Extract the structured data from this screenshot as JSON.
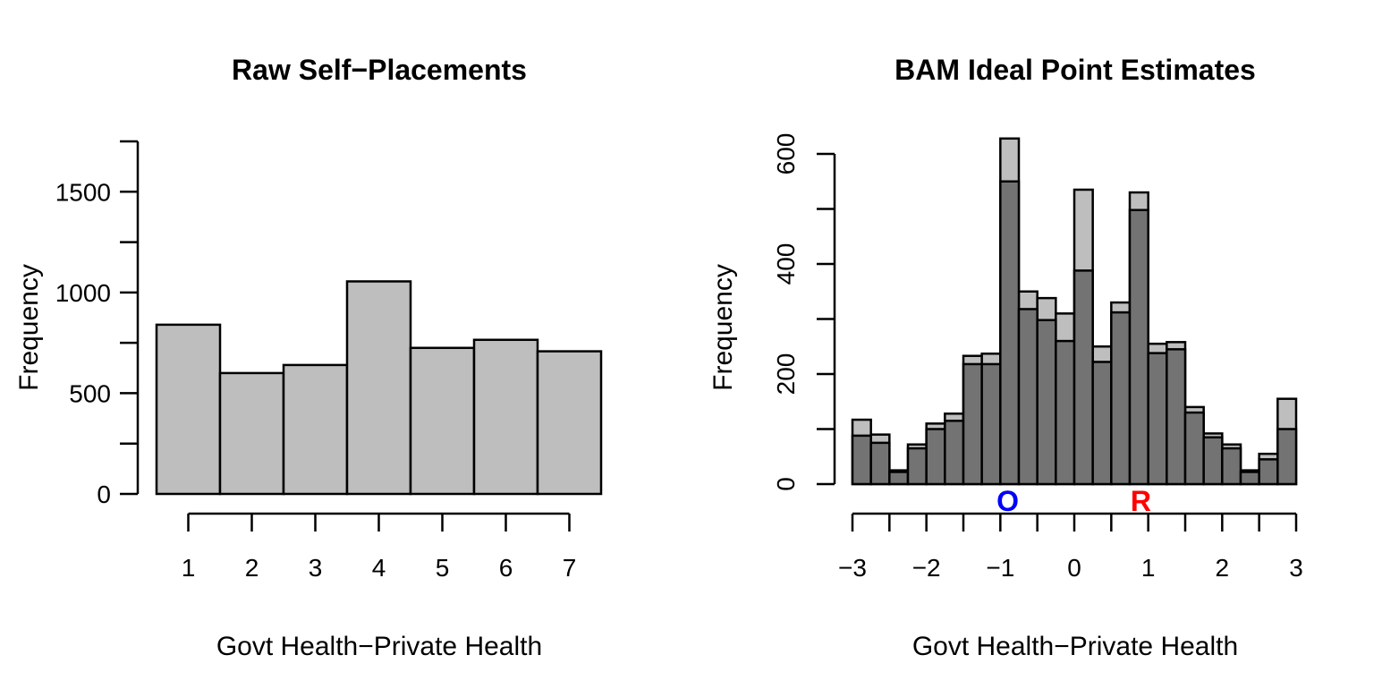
{
  "chart_data": [
    {
      "type": "bar",
      "title": "Raw Self−Placements",
      "xlabel": "Govt Health−Private Health",
      "ylabel": "Frequency",
      "categories": [
        "1",
        "2",
        "3",
        "4",
        "5",
        "6",
        "7"
      ],
      "values": [
        840,
        600,
        640,
        1055,
        725,
        765,
        708
      ],
      "ylim": [
        0,
        1750
      ],
      "yticks": [
        "0",
        "500",
        "1000",
        "1500"
      ],
      "ytick_values": [
        0,
        500,
        1000,
        1500
      ],
      "grid": false,
      "colors": {
        "bar_fill": "#bebebe",
        "bar_stroke": "#000000"
      }
    },
    {
      "type": "bar",
      "title": "BAM Ideal Point Estimates",
      "xlabel": "Govt Health−Private Health",
      "ylabel": "Frequency",
      "bin_edges": [
        -3.0,
        -2.75,
        -2.5,
        -2.25,
        -2.0,
        -1.75,
        -1.5,
        -1.25,
        -1.0,
        -0.75,
        -0.5,
        -0.25,
        0.0,
        0.25,
        0.5,
        0.75,
        1.0,
        1.25,
        1.5,
        1.75,
        2.0,
        2.25,
        2.5,
        2.75,
        3.0
      ],
      "series": [
        {
          "values": [
            117,
            90,
            25,
            72,
            110,
            128,
            233,
            237,
            628,
            350,
            338,
            310,
            535,
            250,
            330,
            530,
            255,
            258,
            140,
            92,
            72,
            25,
            55,
            155
          ]
        },
        {
          "values": [
            88,
            75,
            22,
            65,
            100,
            115,
            218,
            218,
            550,
            318,
            298,
            260,
            388,
            222,
            312,
            498,
            238,
            245,
            130,
            85,
            65,
            22,
            45,
            100
          ]
        }
      ],
      "xlim": [
        -3,
        3
      ],
      "ylim": [
        0,
        630
      ],
      "xticks": [
        "−3",
        "−2",
        "−1",
        "0",
        "1",
        "2",
        "3"
      ],
      "xtick_values": [
        -3,
        -2,
        -1,
        0,
        1,
        2,
        3
      ],
      "yticks": [
        "0",
        "200",
        "400",
        "600"
      ],
      "ytick_values": [
        0,
        200,
        400,
        600
      ],
      "markers": [
        {
          "label": "O",
          "x": -0.9,
          "color": "#0000ff"
        },
        {
          "label": "R",
          "x": 0.9,
          "color": "#ff0000"
        }
      ],
      "grid": false,
      "colors": {
        "back_fill": "#bebebe",
        "front_fill": "#737373",
        "bar_stroke": "#000000"
      }
    }
  ]
}
